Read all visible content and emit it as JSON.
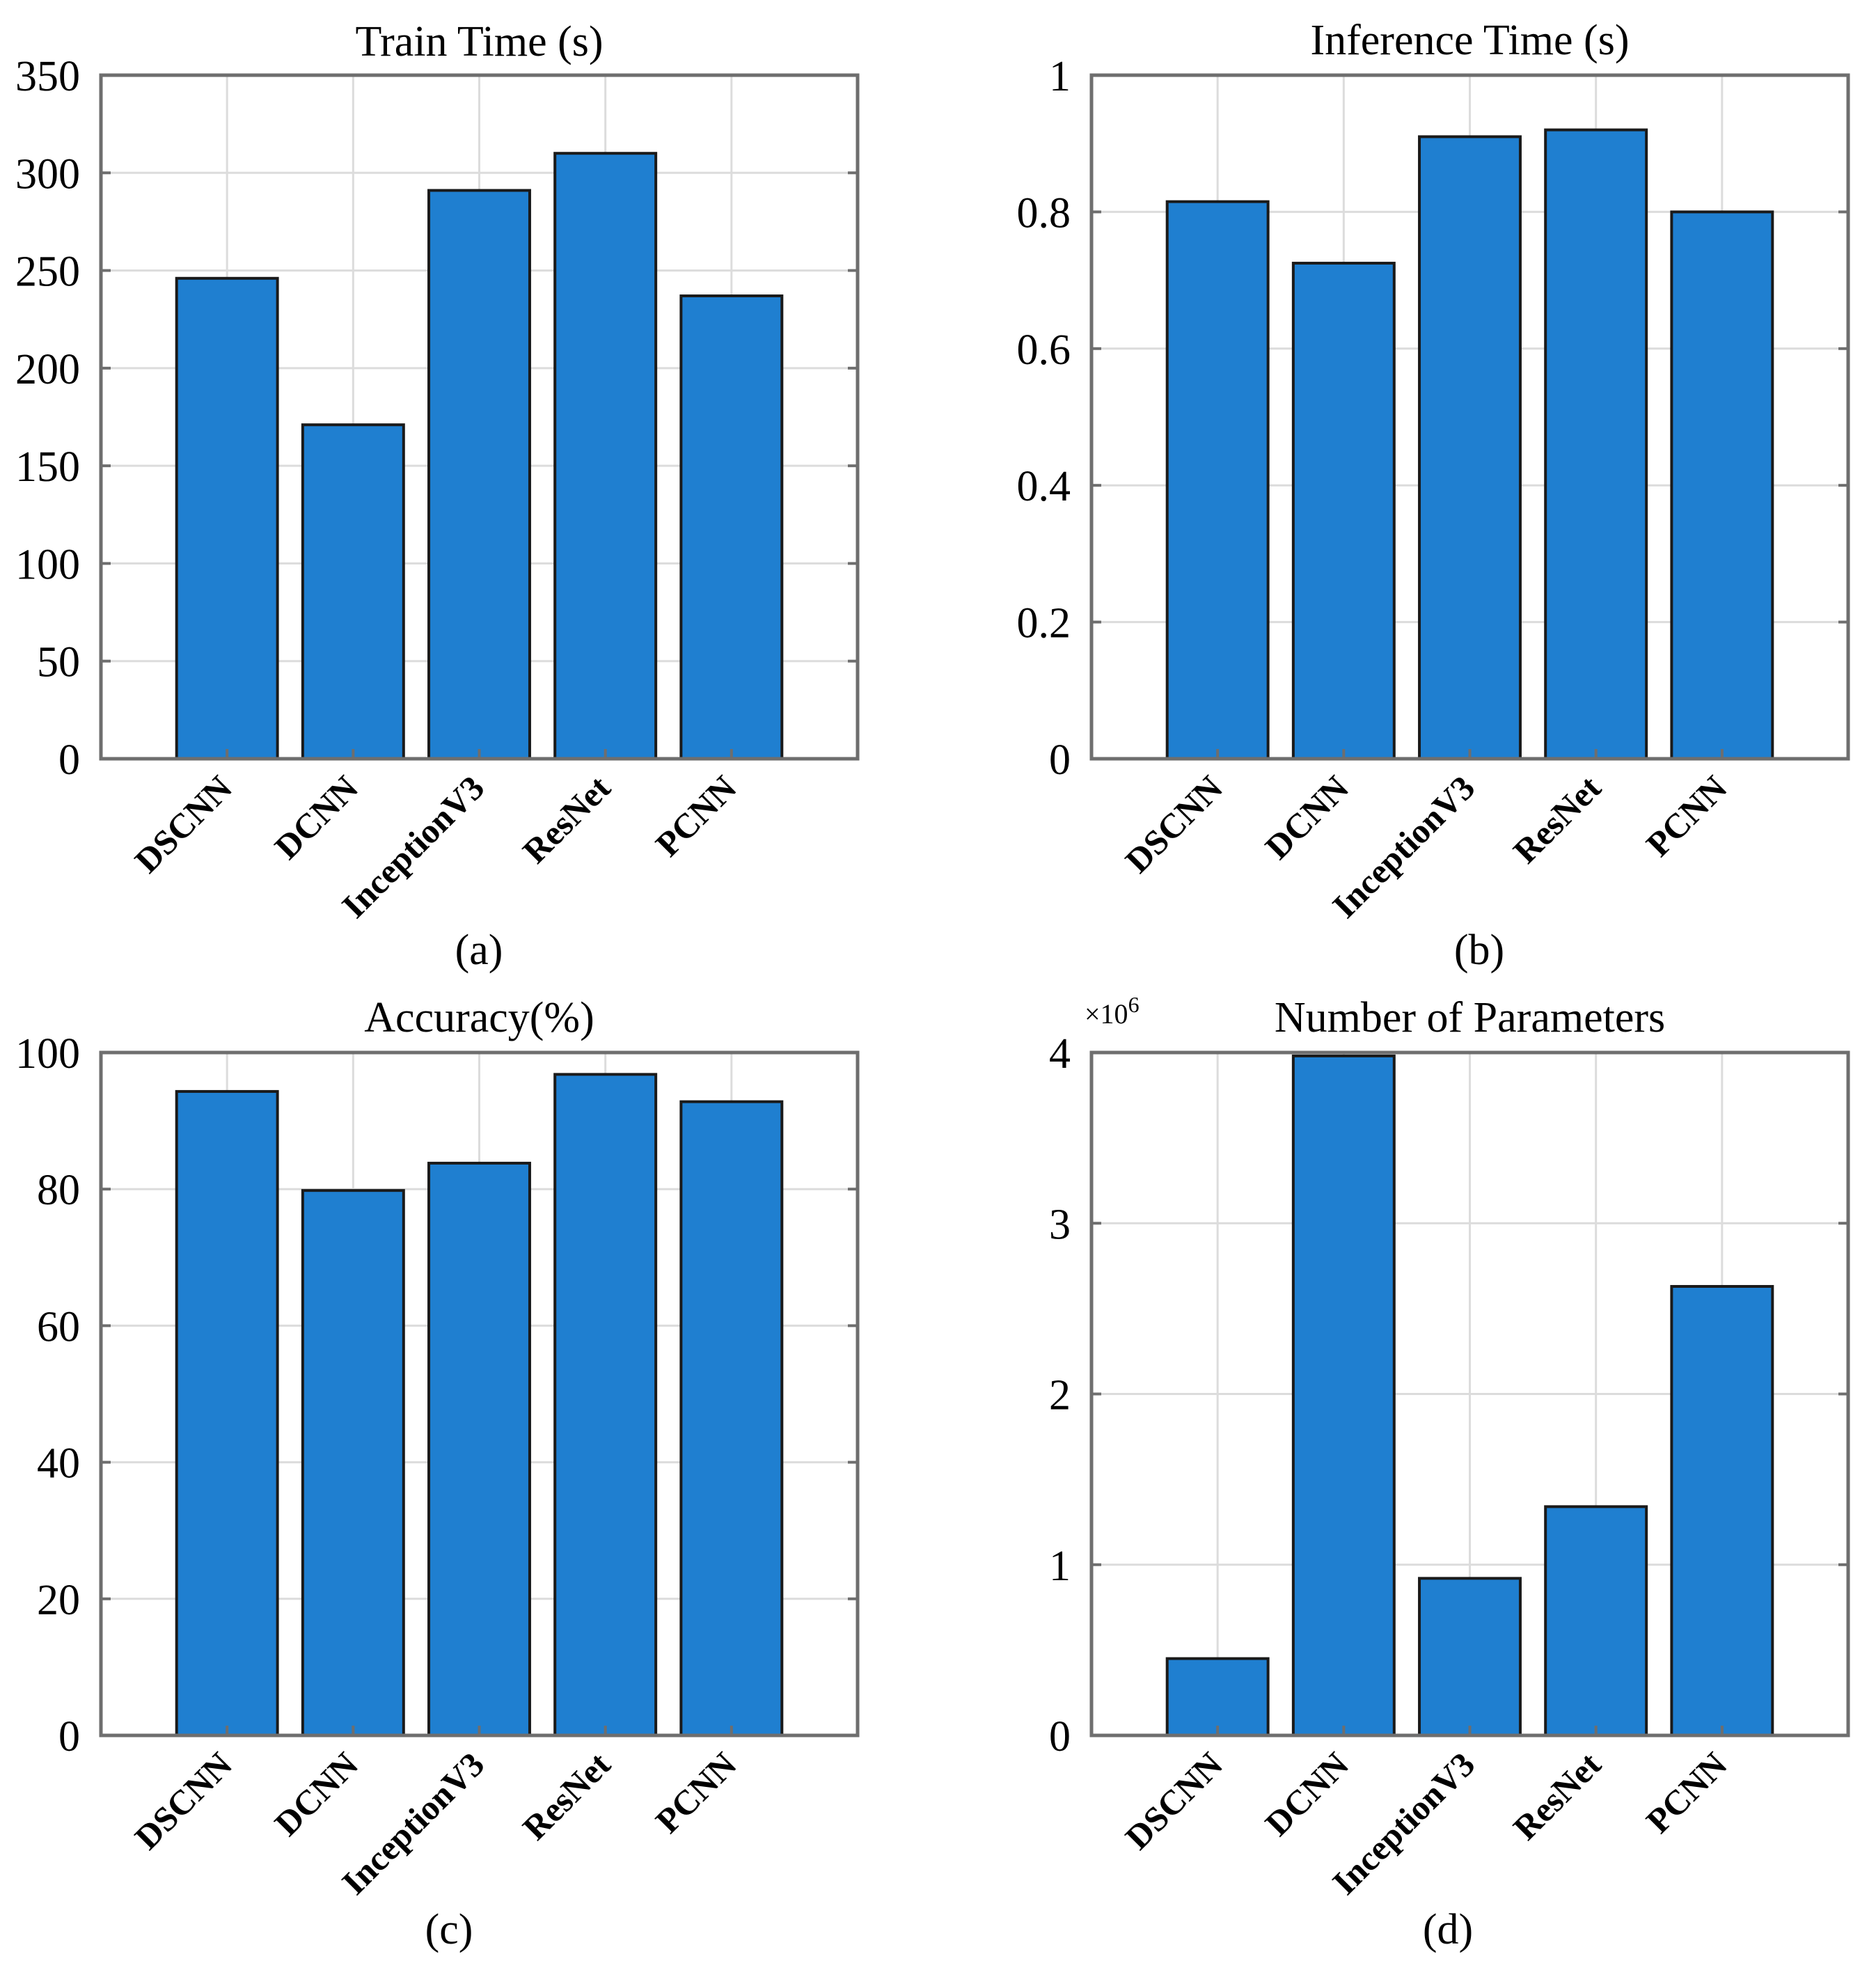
{
  "colors": {
    "bar_fill": "#1f7fd0",
    "bar_stroke": "#1a1a1a",
    "grid": "#dcdcdc",
    "axis": "#6e6e6e"
  },
  "chart_data": [
    {
      "type": "bar",
      "title": "Train Time (s)",
      "caption": "(a)",
      "categories": [
        "DSCNN",
        "DCNN",
        "InceptionV3",
        "ResNet",
        "PCNN"
      ],
      "values": [
        246,
        171,
        291,
        310,
        237
      ],
      "ylim": [
        0,
        350
      ],
      "yticks": [
        0,
        50,
        100,
        150,
        200,
        250,
        300,
        350
      ],
      "ytick_labels": [
        "0",
        "50",
        "100",
        "150",
        "200",
        "250",
        "300",
        "350"
      ],
      "xlabel": "",
      "ylabel": "",
      "grid": true,
      "exponent_label": ""
    },
    {
      "type": "bar",
      "title": "Inference Time (s)",
      "caption": "(b)",
      "categories": [
        "DSCNN",
        "DCNN",
        "InceptionV3",
        "ResNet",
        "PCNN"
      ],
      "values": [
        0.815,
        0.725,
        0.91,
        0.92,
        0.8
      ],
      "ylim": [
        0,
        1
      ],
      "yticks": [
        0,
        0.2,
        0.4,
        0.6,
        0.8,
        1
      ],
      "ytick_labels": [
        "0",
        "0.2",
        "0.4",
        "0.6",
        "0.8",
        "1"
      ],
      "xlabel": "",
      "ylabel": "",
      "grid": true,
      "exponent_label": ""
    },
    {
      "type": "bar",
      "title": "Accuracy(%)",
      "caption": "(c)",
      "categories": [
        "DSCNN",
        "DCNN",
        "InceptionV3",
        "ResNet",
        "PCNN"
      ],
      "values": [
        94.3,
        79.8,
        83.8,
        96.8,
        92.8
      ],
      "ylim": [
        0,
        100
      ],
      "yticks": [
        0,
        20,
        40,
        60,
        80,
        100
      ],
      "ytick_labels": [
        "0",
        "20",
        "40",
        "60",
        "80",
        "100"
      ],
      "xlabel": "",
      "ylabel": "",
      "grid": true,
      "exponent_label": ""
    },
    {
      "type": "bar",
      "title": "Number of Parameters",
      "caption": "(d)",
      "categories": [
        "DSCNN",
        "DCNN",
        "InceptionV3",
        "ResNet",
        "PCNN"
      ],
      "values": [
        450000,
        3980000,
        920000,
        1340000,
        2630000
      ],
      "ylim": [
        0,
        4000000
      ],
      "yticks": [
        0,
        1000000,
        2000000,
        3000000,
        4000000
      ],
      "ytick_labels": [
        "0",
        "1",
        "2",
        "3",
        "4"
      ],
      "xlabel": "",
      "ylabel": "",
      "grid": true,
      "exponent_label": "×10",
      "exponent_power": "6"
    }
  ]
}
